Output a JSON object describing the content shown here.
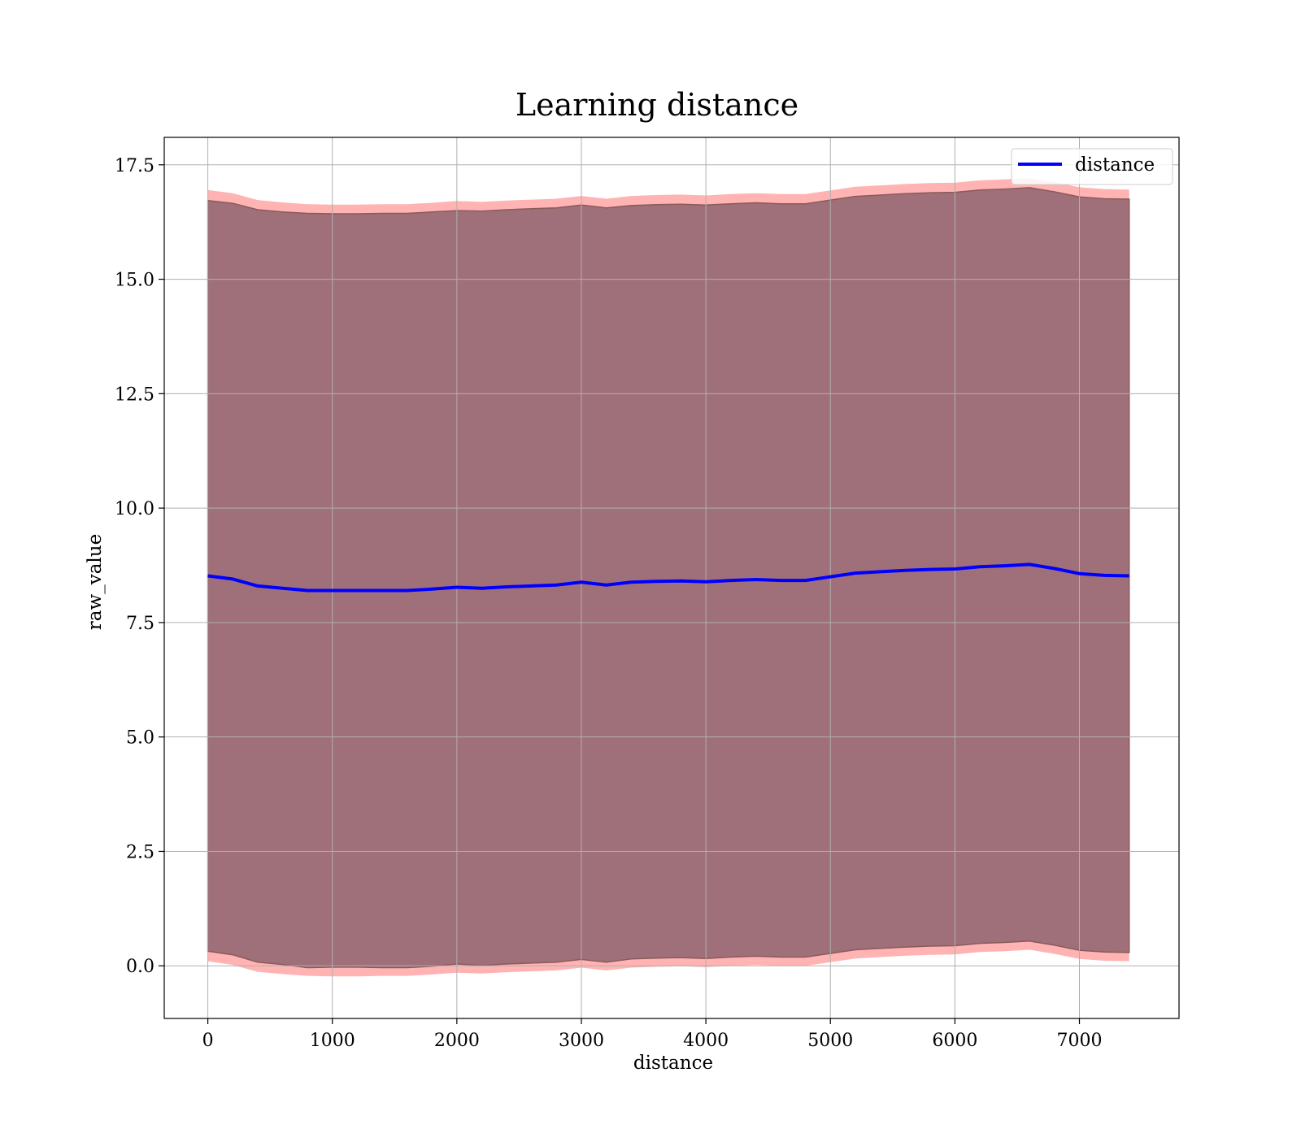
{
  "chart_data": {
    "type": "line",
    "title": "Learning distance",
    "xlabel": "distance",
    "ylabel": "raw_value",
    "xlim": [
      -350,
      7800
    ],
    "ylim": [
      -1.15,
      18.1
    ],
    "xticks": [
      0,
      1000,
      2000,
      3000,
      4000,
      5000,
      6000,
      7000
    ],
    "xtick_labels": [
      "0",
      "1000",
      "2000",
      "3000",
      "4000",
      "5000",
      "6000",
      "7000"
    ],
    "yticks": [
      0.0,
      2.5,
      5.0,
      7.5,
      10.0,
      12.5,
      15.0,
      17.5
    ],
    "ytick_labels": [
      "0.0",
      "2.5",
      "5.0",
      "7.5",
      "10.0",
      "12.5",
      "15.0",
      "17.5"
    ],
    "grid": true,
    "legend": {
      "position": "top-right",
      "entries": [
        "distance"
      ]
    },
    "colors": {
      "line": "#0000ff",
      "outer_band": "#ff9999",
      "inner_band": "#a0707a",
      "band_edge": "#8b5a5a",
      "grid": "#b0b0b0"
    },
    "series": [
      {
        "name": "distance",
        "x": [
          0,
          200,
          400,
          600,
          800,
          1000,
          1200,
          1400,
          1600,
          1800,
          2000,
          2200,
          2400,
          2600,
          2800,
          3000,
          3200,
          3400,
          3600,
          3800,
          4000,
          4200,
          4400,
          4600,
          4800,
          5000,
          5200,
          5400,
          5600,
          5800,
          6000,
          6200,
          6400,
          6600,
          6800,
          7000,
          7200,
          7400
        ],
        "y": [
          8.52,
          8.45,
          8.3,
          8.25,
          8.2,
          8.2,
          8.2,
          8.2,
          8.2,
          8.23,
          8.27,
          8.25,
          8.28,
          8.3,
          8.32,
          8.38,
          8.32,
          8.38,
          8.4,
          8.41,
          8.39,
          8.42,
          8.44,
          8.42,
          8.42,
          8.5,
          8.58,
          8.61,
          8.64,
          8.66,
          8.67,
          8.72,
          8.74,
          8.77,
          8.68,
          8.57,
          8.53,
          8.52
        ],
        "band_inner_upper": [
          16.72,
          16.66,
          16.52,
          16.47,
          16.44,
          16.43,
          16.43,
          16.44,
          16.44,
          16.47,
          16.5,
          16.49,
          16.52,
          16.54,
          16.56,
          16.62,
          16.56,
          16.61,
          16.63,
          16.64,
          16.62,
          16.65,
          16.67,
          16.65,
          16.65,
          16.73,
          16.81,
          16.84,
          16.87,
          16.89,
          16.9,
          16.95,
          16.97,
          17.0,
          16.91,
          16.8,
          16.76,
          16.75
        ],
        "band_inner_lower": [
          0.32,
          0.24,
          0.08,
          0.03,
          -0.04,
          -0.03,
          -0.03,
          -0.04,
          -0.04,
          -0.01,
          0.04,
          0.01,
          0.04,
          0.06,
          0.08,
          0.14,
          0.08,
          0.15,
          0.17,
          0.18,
          0.16,
          0.19,
          0.21,
          0.19,
          0.19,
          0.27,
          0.35,
          0.38,
          0.41,
          0.43,
          0.44,
          0.49,
          0.51,
          0.54,
          0.45,
          0.34,
          0.3,
          0.29
        ],
        "band_outer_upper": [
          16.95,
          16.88,
          16.73,
          16.68,
          16.64,
          16.63,
          16.63,
          16.64,
          16.64,
          16.67,
          16.71,
          16.69,
          16.72,
          16.74,
          16.76,
          16.82,
          16.76,
          16.82,
          16.84,
          16.85,
          16.83,
          16.86,
          16.88,
          16.86,
          16.86,
          16.94,
          17.02,
          17.05,
          17.08,
          17.1,
          17.11,
          17.16,
          17.18,
          17.21,
          17.12,
          17.01,
          16.97,
          16.96
        ],
        "band_outer_lower": [
          0.1,
          0.02,
          -0.13,
          -0.18,
          -0.22,
          -0.23,
          -0.23,
          -0.22,
          -0.22,
          -0.19,
          -0.15,
          -0.17,
          -0.14,
          -0.12,
          -0.1,
          -0.04,
          -0.1,
          -0.04,
          -0.02,
          -0.01,
          -0.03,
          0.0,
          0.02,
          0.0,
          0.0,
          0.08,
          0.16,
          0.19,
          0.22,
          0.24,
          0.25,
          0.3,
          0.32,
          0.35,
          0.26,
          0.15,
          0.11,
          0.1
        ]
      }
    ]
  }
}
